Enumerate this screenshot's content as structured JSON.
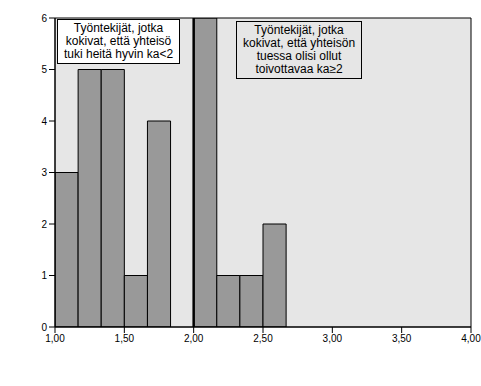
{
  "chart_data": {
    "type": "histogram",
    "bins": [
      1,
      1.1667,
      1.3333,
      1.5,
      1.6667,
      1.8333,
      2,
      2.1667,
      2.3333,
      2.5,
      2.6667
    ],
    "counts": [
      3,
      5,
      5,
      1,
      4,
      0,
      6,
      1,
      1,
      2
    ],
    "color": "#999999",
    "xlim": [
      1,
      4
    ],
    "xticks": [
      {
        "value": 1,
        "label": "1,00"
      },
      {
        "value": 1.5,
        "label": "1,50"
      },
      {
        "value": 2,
        "label": "2,00"
      },
      {
        "value": 2.5,
        "label": "2,50"
      },
      {
        "value": 3,
        "label": "3,00"
      },
      {
        "value": 3.5,
        "label": "3,50"
      },
      {
        "value": 4,
        "label": "4,00"
      }
    ],
    "ylim": [
      0,
      6
    ],
    "yticks": [
      0,
      1,
      2,
      3,
      4,
      5,
      6
    ],
    "reference_x": 2,
    "annotations": [
      {
        "text": [
          "Työntekijät, jotka",
          "kokivat, että yhteisö",
          "tuki heitä hyvin ka<2"
        ]
      },
      {
        "text": [
          "Työntekijät, jotka",
          "kokivat, että yhteisön",
          "tuessa olisi ollut",
          "toivottavaa ka≥2"
        ]
      }
    ]
  }
}
